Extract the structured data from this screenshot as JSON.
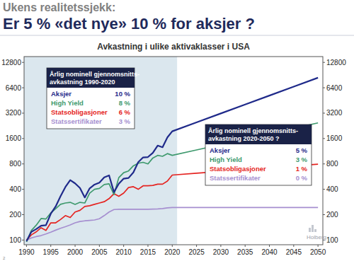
{
  "header": {
    "kicker": "Ukens realitetssjekk:",
    "title": "Er 5 % «det nye» 10 % for aksjer ?",
    "page": "2"
  },
  "chart_data": {
    "type": "line",
    "title": "Avkastning i ulike aktivaklasser i USA",
    "log": "y",
    "x": [
      1990,
      1991,
      1992,
      1993,
      1994,
      1995,
      1996,
      1997,
      1998,
      1999,
      2000,
      2001,
      2002,
      2003,
      2004,
      2005,
      2006,
      2007,
      2008,
      2009,
      2010,
      2011,
      2012,
      2013,
      2014,
      2015,
      2016,
      2017,
      2018,
      2019,
      2020,
      2025,
      2030,
      2035,
      2040,
      2045,
      2050
    ],
    "series": [
      {
        "name": "Aksjer",
        "color": "#1f2a8a",
        "values": [
          97,
          125,
          135,
          148,
          150,
          205,
          250,
          330,
          425,
          515,
          470,
          415,
          320,
          410,
          455,
          480,
          555,
          585,
          370,
          465,
          535,
          545,
          635,
          840,
          955,
          965,
          1080,
          1320,
          1260,
          1650,
          1950,
          2489,
          3176,
          4054,
          5174,
          6603,
          8427
        ]
      },
      {
        "name": "High Yield",
        "color": "#3f9a6e",
        "values": [
          95,
          130,
          150,
          180,
          178,
          210,
          235,
          265,
          275,
          280,
          265,
          280,
          275,
          360,
          400,
          410,
          455,
          465,
          345,
          550,
          630,
          660,
          760,
          815,
          835,
          800,
          940,
          1010,
          985,
          1060,
          1010,
          1171,
          1357,
          1574,
          1824,
          2115,
          2452
        ]
      },
      {
        "name": "Statsobligasjoner",
        "color": "#e52421",
        "values": [
          100,
          115,
          125,
          140,
          130,
          160,
          160,
          175,
          195,
          185,
          215,
          225,
          250,
          255,
          265,
          275,
          285,
          310,
          355,
          330,
          360,
          420,
          430,
          400,
          440,
          440,
          445,
          460,
          460,
          500,
          590,
          620,
          652,
          685,
          720,
          757,
          795
        ]
      },
      {
        "name": "Statssertifikater",
        "color": "#a68fd0",
        "values": [
          100,
          106,
          110,
          113,
          118,
          124,
          131,
          138,
          144,
          151,
          160,
          166,
          169,
          171,
          173,
          179,
          195,
          215,
          230,
          232,
          232,
          232,
          232,
          232,
          232,
          232,
          233,
          234,
          236,
          241,
          243,
          243,
          243,
          243,
          243,
          243,
          243
        ]
      }
    ],
    "xlim": [
      1989.5,
      2051
    ],
    "xticks": [
      1990,
      1995,
      2000,
      2005,
      2010,
      2015,
      2020,
      2025,
      2030,
      2035,
      2040,
      2045,
      2050
    ],
    "ylim": [
      88,
      15000
    ],
    "yticks": [
      100,
      200,
      400,
      800,
      1600,
      3200,
      6400,
      12800
    ],
    "highlight_x": [
      1989.5,
      2021
    ],
    "annotations": [
      {
        "title": [
          "Årlig nominell gjennomsnitts-",
          "avkastning 1990-2020"
        ],
        "rows": [
          {
            "name": "Aksjer",
            "value": "10 %",
            "color": "#1f2a8a"
          },
          {
            "name": "High Yield",
            "value": "8 %",
            "color": "#3f9a6e"
          },
          {
            "name": "Statsobligasjoner",
            "value": "6 %",
            "color": "#e52421"
          },
          {
            "name": "Statssertifikater",
            "value": "3 %",
            "color": "#a68fd0"
          }
        ]
      },
      {
        "title": [
          "Årlig nominell gjennomsnitts-",
          "avkastning 2020-2050 ?"
        ],
        "rows": [
          {
            "name": "Aksjer",
            "value": "5 %",
            "color": "#1f2a8a"
          },
          {
            "name": "High Yield",
            "value": "3 %",
            "color": "#3f9a6e"
          },
          {
            "name": "Statsobligasjoner",
            "value": "1 %",
            "color": "#e52421"
          },
          {
            "name": "Statssertifikater",
            "value": "0 %",
            "color": "#a68fd0"
          }
        ]
      }
    ],
    "logo": "Holberg"
  }
}
